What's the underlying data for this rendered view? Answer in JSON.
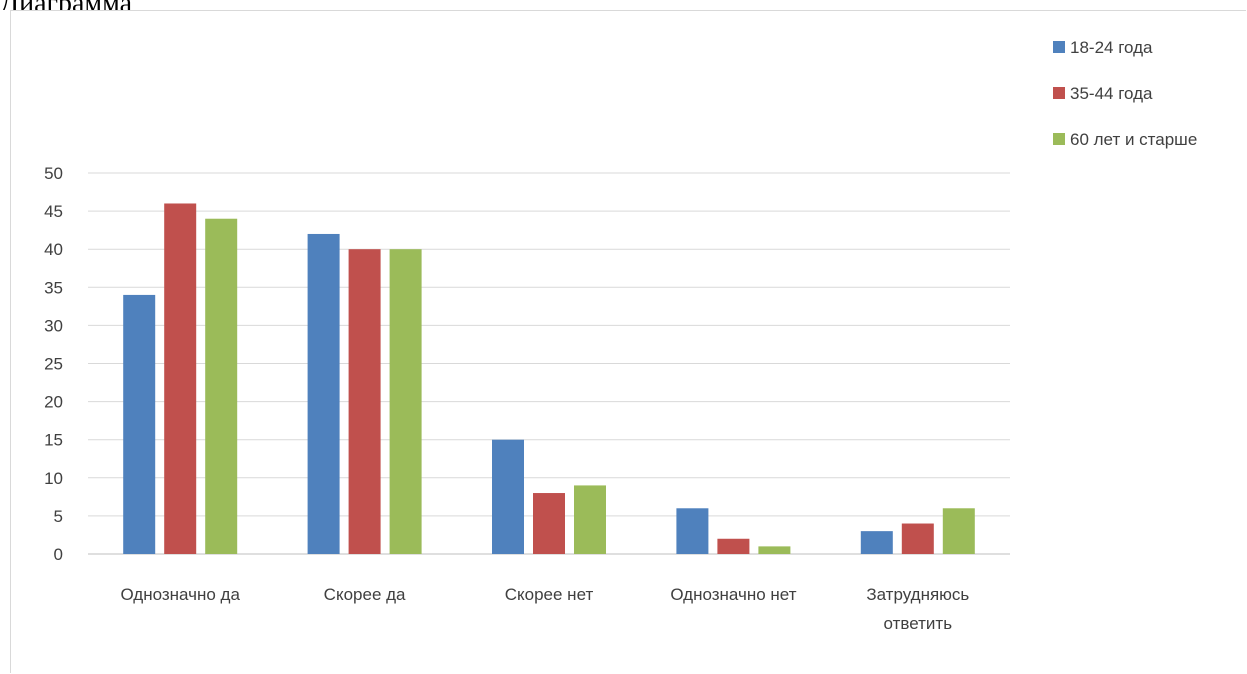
{
  "page": {
    "top_text": "Диаграмма"
  },
  "chart_data": {
    "type": "bar",
    "title": "",
    "xlabel": "",
    "ylabel": "",
    "ylim": [
      0,
      50
    ],
    "yticks": [
      "0",
      "5",
      "10",
      "15",
      "20",
      "25",
      "30",
      "35",
      "40",
      "45",
      "50"
    ],
    "ytick_values": [
      0,
      5,
      10,
      15,
      20,
      25,
      30,
      35,
      40,
      45,
      50
    ],
    "grid": true,
    "legend_position": "top-right",
    "categories": [
      [
        "Однозначно да"
      ],
      [
        "Скорее да"
      ],
      [
        "Скорее нет"
      ],
      [
        "Однозначно нет"
      ],
      [
        "Затрудняюсь",
        "ответить"
      ]
    ],
    "series": [
      {
        "name": "18-24 года",
        "color": "#4f81bd",
        "values": [
          34,
          42,
          15,
          6,
          3
        ]
      },
      {
        "name": "35-44 года",
        "color": "#c0504d",
        "values": [
          46,
          40,
          8,
          2,
          4
        ]
      },
      {
        "name": "60 лет и старше",
        "color": "#9bbb59",
        "values": [
          44,
          40,
          9,
          1,
          6
        ]
      }
    ]
  }
}
